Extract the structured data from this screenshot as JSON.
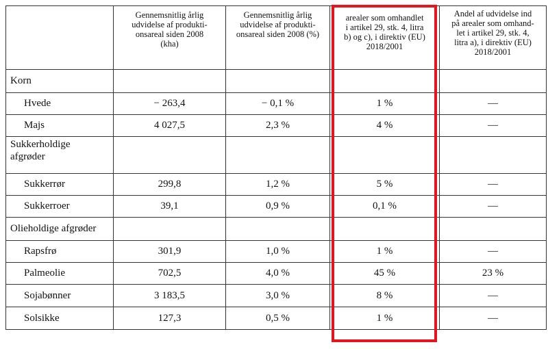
{
  "header": {
    "col0": "",
    "col1": "Gennemsnitlig årlig udvidelse af produktionsareal siden 2008 (kha)",
    "col1_display": [
      "Gennemsnitlig årlig",
      "udvidelse af produkti-",
      "onsareal siden 2008",
      "(kha)"
    ],
    "col2_display": [
      "Gennemsnitlig årlig",
      "udvidelse af produkti-",
      "onsareal siden 2008 (%)"
    ],
    "col3_display": [
      "arealer som omhandlet",
      "i artikel 29, stk. 4, litra",
      "b) og c), i direktiv (EU)",
      "2018/2001"
    ],
    "col4_display": [
      "Andel af udvidelse ind",
      "på arealer som omhand-",
      "let i artikel 29, stk. 4,",
      "litra a), i direktiv (EU)",
      "2018/2001"
    ]
  },
  "rows": [
    {
      "label": "Korn",
      "type": "category"
    },
    {
      "label": "Hvede",
      "type": "item",
      "kha": "− 263,4",
      "pct": "− 0,1 %",
      "bc": "1 %",
      "a": "—"
    },
    {
      "label": "Majs",
      "type": "item",
      "kha": "4 027,5",
      "pct": "2,3 %",
      "bc": "4 %",
      "a": "—"
    },
    {
      "label": "Sukkerholdige afgrøder",
      "label_lines": [
        "Sukkerholdige",
        "afgrøder"
      ],
      "type": "category"
    },
    {
      "label": "Sukkerrør",
      "type": "item",
      "kha": "299,8",
      "pct": "1,2 %",
      "bc": "5 %",
      "a": "—"
    },
    {
      "label": "Sukkerroer",
      "type": "item",
      "kha": "39,1",
      "pct": "0,9 %",
      "bc": "0,1 %",
      "a": "—"
    },
    {
      "label": "Olieholdige afgrøder",
      "type": "category"
    },
    {
      "label": "Rapsfrø",
      "type": "item",
      "kha": "301,9",
      "pct": "1,0 %",
      "bc": "1 %",
      "a": "—"
    },
    {
      "label": "Palmeolie",
      "type": "item",
      "kha": "702,5",
      "pct": "4,0 %",
      "bc": "45 %",
      "a": "23 %"
    },
    {
      "label": "Sojabønner",
      "type": "item",
      "kha": "3 183,5",
      "pct": "3,0 %",
      "bc": "8 %",
      "a": "—"
    },
    {
      "label": "Solsikke",
      "type": "item",
      "kha": "127,3",
      "pct": "0,5 %",
      "bc": "1 %",
      "a": "—"
    }
  ],
  "highlight_color": "#e8141c"
}
